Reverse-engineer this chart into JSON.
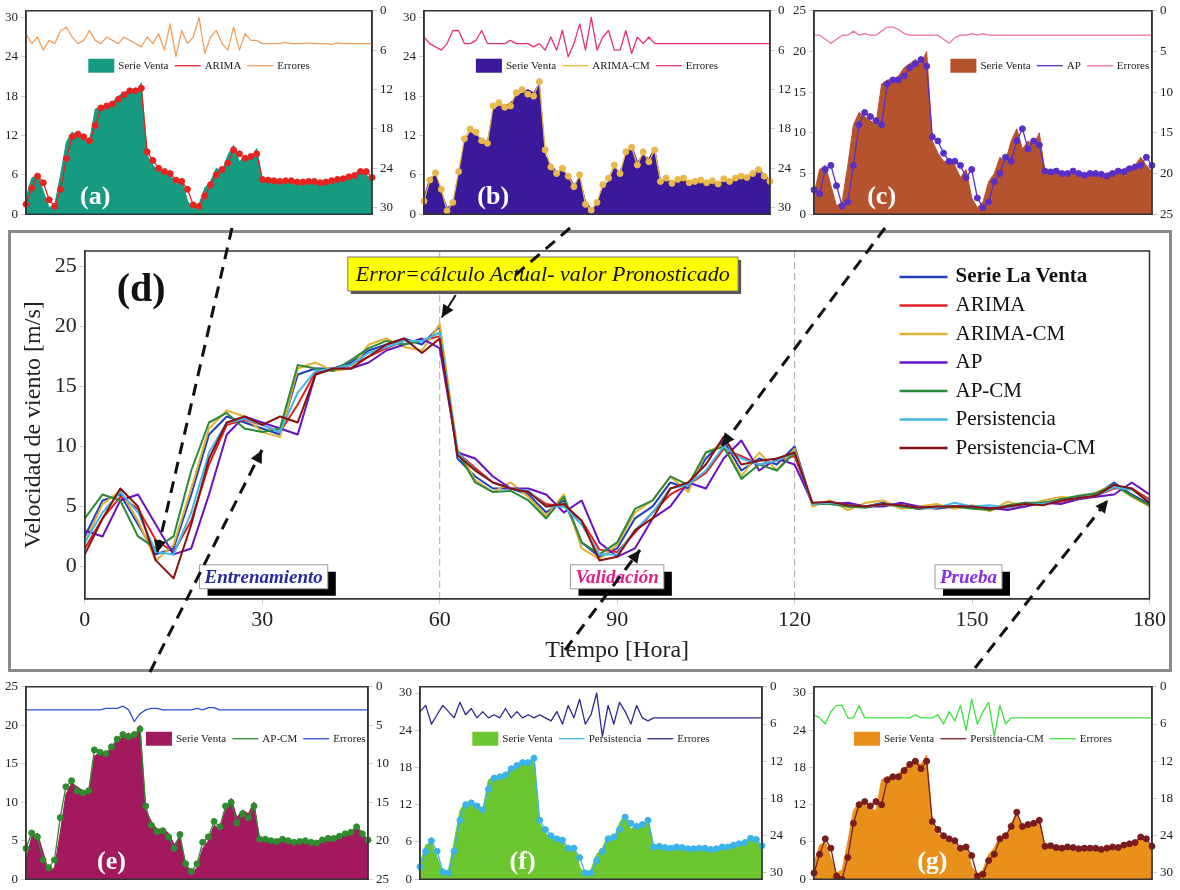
{
  "chart_data": [
    {
      "type": "area",
      "title": "(a)",
      "legend": "top",
      "categories": [
        null,
        null,
        null,
        null,
        null,
        null,
        null,
        null,
        null,
        null,
        null,
        null,
        null,
        null,
        null,
        null,
        null,
        null,
        null,
        null,
        null,
        null,
        null,
        null,
        null,
        null,
        null,
        null,
        null,
        null,
        null,
        null,
        null,
        null,
        null,
        null,
        null,
        null,
        null,
        null,
        null,
        null,
        null,
        null,
        null,
        null,
        null,
        null,
        null,
        null,
        null,
        null,
        null,
        null,
        null,
        null,
        null,
        null,
        null,
        null,
        null
      ],
      "ylim": [
        0,
        31
      ],
      "yticks": [
        0,
        6,
        12,
        18,
        24,
        30
      ],
      "y2lim": [
        31,
        0
      ],
      "y2ticks": [
        0,
        6,
        12,
        18,
        24,
        30
      ],
      "series": [
        {
          "name": "Serie Venta",
          "type": "area",
          "color": "#169a80",
          "values": [
            2.5,
            5.5,
            6,
            3.5,
            1,
            1.5,
            6,
            11,
            12.5,
            12,
            11.5,
            11,
            16,
            16.5,
            16.5,
            17,
            18,
            18.5,
            19,
            18.5,
            20,
            9,
            7.5,
            6.5,
            6.5,
            6,
            4.5,
            5.5,
            2,
            0.8,
            1.5,
            4,
            5,
            7,
            6.5,
            9,
            10.5,
            8,
            9,
            8.5,
            10,
            5.2,
            5.3,
            5,
            5,
            5.3,
            5,
            4.8,
            5,
            5,
            4.9,
            4.7,
            5,
            5.3,
            5.2,
            5.6,
            5.8,
            6,
            7,
            6,
            5.2
          ]
        },
        {
          "name": "ARIMA",
          "type": "line",
          "marker": "circle",
          "color": "#e8231f",
          "values": [
            1.5,
            4,
            5.8,
            4.8,
            2.2,
            1.2,
            3.8,
            8.5,
            11.8,
            12.2,
            11.8,
            11.2,
            13.5,
            16.2,
            16.5,
            16.8,
            17.5,
            18.2,
            18.8,
            18.8,
            19.2,
            9.5,
            8.2,
            7,
            6.5,
            6.2,
            5.2,
            5,
            3.8,
            1.4,
            1.2,
            2.8,
            4.5,
            6,
            6.8,
            7.8,
            9.8,
            9.2,
            8.5,
            8.8,
            9.2,
            5.3,
            5.2,
            5.1,
            5,
            5.1,
            5.1,
            4.9,
            4.9,
            5,
            5,
            4.8,
            4.9,
            5.1,
            5.3,
            5.4,
            5.7,
            5.9,
            6.5,
            6.5,
            5.6
          ]
        },
        {
          "name": "Errores",
          "type": "line",
          "axis": "y2",
          "color": "#f0a060",
          "values": [
            3.5,
            5,
            4,
            6,
            4.5,
            5,
            3,
            2.5,
            4,
            5,
            4.5,
            3,
            4.5,
            5,
            4,
            4.5,
            5,
            4,
            4.5,
            5,
            5.5,
            4,
            5,
            3.5,
            6,
            2,
            7,
            3,
            5,
            4,
            1,
            6.5,
            4,
            3,
            5,
            6,
            2.5,
            6,
            3.5,
            4.5,
            4.5,
            5,
            5,
            5,
            5,
            4.8,
            5,
            5,
            5,
            4.9,
            5,
            5,
            5,
            5.1,
            4.9,
            5,
            5,
            5,
            5,
            5,
            5
          ]
        }
      ]
    },
    {
      "type": "area",
      "title": "(b)",
      "legend": "top",
      "categories": [
        null,
        null,
        null,
        null,
        null,
        null,
        null,
        null,
        null,
        null,
        null,
        null,
        null,
        null,
        null,
        null,
        null,
        null,
        null,
        null,
        null,
        null,
        null,
        null,
        null,
        null,
        null,
        null,
        null,
        null,
        null,
        null,
        null,
        null,
        null,
        null,
        null,
        null,
        null,
        null,
        null,
        null,
        null,
        null,
        null,
        null,
        null,
        null,
        null,
        null,
        null,
        null,
        null,
        null,
        null,
        null,
        null,
        null,
        null,
        null,
        null
      ],
      "ylim": [
        0,
        31
      ],
      "yticks": [
        0,
        6,
        12,
        18,
        24,
        30
      ],
      "y2lim": [
        31,
        0
      ],
      "y2ticks": [
        0,
        6,
        12,
        18,
        24,
        30
      ],
      "series": [
        {
          "name": "Serie Venta",
          "type": "area",
          "color": "#3a1a9a",
          "values": [
            2.5,
            5.5,
            6,
            3.5,
            1,
            1.5,
            6,
            11,
            12.5,
            12,
            11.5,
            11,
            16,
            16.5,
            16.5,
            17,
            18,
            18.5,
            19,
            18.5,
            20,
            9,
            7.5,
            6.5,
            6.5,
            6,
            4.5,
            5.5,
            2,
            0.8,
            1.5,
            4,
            5,
            7,
            6.5,
            9,
            10.5,
            8,
            9,
            8.5,
            10,
            5.2,
            5.3,
            5,
            5,
            5.3,
            5,
            4.8,
            5,
            5,
            4.9,
            4.7,
            5,
            5.3,
            5.2,
            5.6,
            5.8,
            6,
            7,
            6,
            5.2
          ]
        },
        {
          "name": "ARIMA-CM",
          "type": "line",
          "marker": "circle",
          "color": "#e8b84a",
          "values": [
            2,
            5.2,
            6.3,
            3.8,
            0.5,
            1.8,
            6.5,
            11.5,
            13,
            12.5,
            11.2,
            10.8,
            16.5,
            17,
            16.3,
            16.5,
            18.5,
            19,
            18.3,
            18,
            20.2,
            9.8,
            7.2,
            6.2,
            7,
            5.8,
            4.2,
            6,
            1.5,
            0.6,
            1.8,
            4.5,
            5.5,
            7.5,
            6.2,
            9.5,
            10.2,
            7.5,
            9.5,
            8,
            9.8,
            5,
            5.5,
            4.7,
            5.3,
            5.5,
            4.8,
            5,
            5.2,
            4.8,
            5.1,
            4.6,
            5.4,
            5,
            5.5,
            5.8,
            5.6,
            6.2,
            6.8,
            5.8,
            5
          ]
        },
        {
          "name": "Errores",
          "type": "line",
          "axis": "y2",
          "color": "#e8307a",
          "values": [
            4,
            5,
            5.5,
            6,
            5,
            3,
            3,
            5,
            5,
            4.5,
            3,
            5,
            5,
            5,
            5,
            4.5,
            5,
            5,
            5,
            5.5,
            5,
            6,
            4,
            6,
            3,
            7,
            5,
            2,
            6,
            1,
            6,
            4,
            3,
            6,
            6,
            3,
            6.5,
            4,
            5,
            4,
            5,
            5,
            5,
            5,
            5,
            5,
            5,
            5,
            5,
            5,
            5,
            5,
            5,
            5,
            5,
            5,
            5,
            5,
            5,
            5,
            5
          ]
        }
      ]
    },
    {
      "type": "area",
      "title": "(c)",
      "legend": "top right",
      "categories": [
        null,
        null,
        null,
        null,
        null,
        null,
        null,
        null,
        null,
        null,
        null,
        null,
        null,
        null,
        null,
        null,
        null,
        null,
        null,
        null,
        null,
        null,
        null,
        null,
        null,
        null,
        null,
        null,
        null,
        null,
        null,
        null,
        null,
        null,
        null,
        null,
        null,
        null,
        null,
        null,
        null,
        null,
        null,
        null,
        null,
        null,
        null,
        null,
        null,
        null,
        null,
        null,
        null,
        null,
        null,
        null,
        null,
        null,
        null,
        null,
        null
      ],
      "ylim": [
        0,
        25
      ],
      "yticks": [
        0,
        5,
        10,
        15,
        20,
        25
      ],
      "y2lim": [
        25,
        0
      ],
      "y2ticks": [
        0,
        5,
        10,
        15,
        20,
        25
      ],
      "series": [
        {
          "name": "Serie Venta",
          "type": "area",
          "color": "#b5532e",
          "values": [
            2.5,
            5.5,
            6,
            3.5,
            1,
            1.5,
            6,
            11,
            12.5,
            12,
            11.5,
            11,
            16,
            16.5,
            16.5,
            17,
            18,
            18.5,
            19,
            18.5,
            20,
            9,
            7.5,
            6.5,
            6.5,
            6,
            4.5,
            5.5,
            2,
            0.8,
            1.5,
            4,
            5,
            7,
            6.5,
            9,
            10.5,
            8,
            9,
            8.5,
            10,
            5.2,
            5.3,
            5,
            5,
            5.3,
            5,
            4.8,
            5,
            5,
            4.9,
            4.7,
            5,
            5.3,
            5.2,
            5.6,
            5.8,
            6,
            7,
            6,
            5.2
          ]
        },
        {
          "name": "AP",
          "type": "line",
          "marker": "circle",
          "color": "#5a2fc8",
          "values": [
            3,
            2.5,
            5.5,
            6,
            3.5,
            1,
            1.5,
            6,
            11,
            12.5,
            12,
            11.5,
            11,
            16,
            16.5,
            16.5,
            17,
            18,
            18.5,
            19,
            18.2,
            9.5,
            9,
            7.5,
            6.5,
            6.5,
            6,
            4.5,
            5.5,
            2,
            0.8,
            1.5,
            4,
            5,
            7,
            6.5,
            9,
            10.5,
            8,
            9,
            8.5,
            5.3,
            5.2,
            5.3,
            5,
            5,
            5.3,
            5,
            4.8,
            5,
            5,
            4.9,
            4.7,
            5,
            5.3,
            5.2,
            5.6,
            5.8,
            6,
            7,
            6
          ]
        },
        {
          "name": "Errores",
          "type": "line",
          "axis": "y2",
          "color": "#f070a0",
          "values": [
            3,
            3,
            3.5,
            4,
            3.5,
            3,
            3,
            2.5,
            3,
            2.8,
            3,
            3,
            2.5,
            2,
            2,
            2.3,
            2.8,
            3,
            3,
            3,
            3,
            3,
            3,
            3.5,
            4,
            3.3,
            3,
            3,
            2.8,
            3,
            2.8,
            3,
            3,
            3,
            3,
            3,
            3,
            3,
            3,
            3,
            3,
            3,
            3,
            3,
            3,
            3,
            3,
            3,
            3,
            3,
            3,
            3,
            3,
            3,
            3,
            3,
            3,
            3,
            3,
            3,
            3
          ]
        }
      ]
    },
    {
      "type": "line",
      "title": "(d)",
      "legend": "top right",
      "xlabel": "Tiempo [Hora]",
      "ylabel": "Velocidad de viento [m/s]",
      "x": [
        0,
        3,
        6,
        9,
        12,
        15,
        18,
        21,
        24,
        27,
        30,
        33,
        36,
        39,
        42,
        45,
        48,
        51,
        54,
        57,
        60,
        63,
        66,
        69,
        72,
        75,
        78,
        81,
        84,
        87,
        90,
        93,
        96,
        99,
        102,
        105,
        108,
        111,
        114,
        117,
        120,
        123,
        126,
        129,
        132,
        135,
        138,
        141,
        144,
        147,
        150,
        153,
        156,
        159,
        162,
        165,
        168,
        171,
        174,
        177,
        180
      ],
      "xlim": [
        0,
        180
      ],
      "xticks": [
        0,
        30,
        60,
        90,
        120,
        150,
        180
      ],
      "ylim": [
        -2.7,
        26.3
      ],
      "yticks": [
        0,
        5,
        10,
        15,
        20,
        25
      ],
      "ref_lines": [
        {
          "axis": "x",
          "value": 60,
          "color": "#aaaaaa",
          "line_style": "dashed"
        },
        {
          "axis": "x",
          "value": 120,
          "color": "#aaaaaa",
          "line_style": "dashed"
        }
      ],
      "annotations": [
        {
          "text": "Error=cálculo Actual- valor Pronosticado",
          "x": 60,
          "y": 20.5
        },
        "Entrenamiento",
        "Validación",
        "Prueba"
      ],
      "series": [
        {
          "name": "Serie La Venta",
          "color": "#1f3fbf",
          "values": [
            2.5,
            5.5,
            6,
            3.5,
            1,
            1.5,
            6,
            11,
            12.5,
            12,
            11.5,
            11,
            16,
            16.5,
            16.5,
            17,
            18,
            18.5,
            19,
            18.5,
            20,
            9,
            7.5,
            6.5,
            6.5,
            6,
            4.5,
            5.5,
            2,
            0.8,
            1.5,
            4,
            5,
            7,
            6.5,
            9,
            10.5,
            8,
            9,
            8.5,
            10,
            5.2,
            5.3,
            5,
            5,
            5.3,
            5,
            4.8,
            5,
            5,
            4.9,
            4.7,
            5,
            5.3,
            5.2,
            5.6,
            5.8,
            6,
            7,
            6,
            5.2
          ]
        },
        {
          "name": "ARIMA",
          "color": "#e02020",
          "values": [
            1.5,
            4,
            5.8,
            4.8,
            2.2,
            1.2,
            3.8,
            8.5,
            11.8,
            12.2,
            11.8,
            11.2,
            13.5,
            16.2,
            16.5,
            16.8,
            17.5,
            18.2,
            18.8,
            18.8,
            19.2,
            9.5,
            8.2,
            7,
            6.5,
            6.2,
            5.2,
            5,
            3.8,
            1.4,
            1.2,
            2.8,
            4.5,
            6,
            6.8,
            7.8,
            9.8,
            9.2,
            8.5,
            8.8,
            9.2,
            5.3,
            5.2,
            5.1,
            5,
            5.1,
            5.1,
            4.9,
            4.9,
            5,
            5,
            4.8,
            4.9,
            5.1,
            5.3,
            5.4,
            5.7,
            5.9,
            6.5,
            6.5,
            5.6
          ]
        },
        {
          "name": "ARIMA-CM",
          "color": "#e0b030",
          "values": [
            2,
            5.2,
            6.3,
            3.8,
            0.5,
            1.8,
            6.5,
            11.5,
            13,
            12.5,
            11.2,
            10.8,
            16.5,
            17,
            16.3,
            16.5,
            18.5,
            19,
            18.3,
            18,
            20.2,
            9.8,
            7.2,
            6.2,
            7,
            5.8,
            4.2,
            6,
            1.5,
            0.6,
            1.8,
            4.5,
            5.5,
            7.5,
            6.2,
            9.5,
            10.2,
            7.5,
            9.5,
            8,
            9.8,
            5,
            5.5,
            4.7,
            5.3,
            5.5,
            4.8,
            5,
            5.2,
            4.8,
            5.1,
            4.6,
            5.4,
            5,
            5.5,
            5.8,
            5.6,
            6.2,
            6.8,
            5.8,
            5
          ]
        },
        {
          "name": "AP",
          "color": "#6a10c0",
          "values": [
            3,
            2.5,
            5.5,
            6,
            3.5,
            1,
            1.5,
            6,
            11,
            12.5,
            12,
            11.5,
            11,
            16,
            16.5,
            16.5,
            17,
            18,
            18.5,
            19,
            18.2,
            9.5,
            9,
            7.5,
            6.5,
            6.5,
            6,
            4.5,
            5.5,
            2,
            0.8,
            1.5,
            4,
            5,
            7,
            6.5,
            9,
            10.5,
            8,
            9,
            8.5,
            5.3,
            5.2,
            5.3,
            5,
            5,
            5.3,
            5,
            4.8,
            5,
            5,
            4.9,
            4.7,
            5,
            5.3,
            5.2,
            5.6,
            5.8,
            6,
            7,
            6
          ]
        },
        {
          "name": "AP-CM",
          "color": "#2a8a3a",
          "values": [
            4,
            6,
            5.5,
            2.5,
            1.5,
            2.5,
            8,
            12,
            12.8,
            11.5,
            11.2,
            11.5,
            16.8,
            16.5,
            16.3,
            17.2,
            18.2,
            18.8,
            18.5,
            18.8,
            19.5,
            9.5,
            7,
            6.2,
            6.3,
            5.5,
            4,
            5.8,
            2,
            1,
            2,
            4.8,
            5.5,
            7.5,
            6.8,
            9.5,
            10,
            7.3,
            8.5,
            8,
            9.5,
            5.2,
            5.2,
            5,
            4.9,
            5.2,
            5,
            4.8,
            4.9,
            5,
            4.8,
            4.7,
            5.1,
            5.3,
            5.3,
            5.6,
            5.9,
            6.1,
            6.8,
            5.9,
            5.1
          ]
        },
        {
          "name": "Persistencia",
          "color": "#40b8e8",
          "values": [
            2,
            4.5,
            6.2,
            4.5,
            1.2,
            1,
            4.5,
            9.5,
            12,
            12.3,
            11.8,
            11.2,
            14.5,
            16.3,
            16.5,
            16.8,
            17.8,
            18.3,
            18.8,
            18.8,
            19.5,
            9.5,
            8,
            7,
            6.5,
            6.3,
            5,
            5,
            3.5,
            1,
            1,
            3,
            4.5,
            6.5,
            6.8,
            8,
            10,
            9,
            8.5,
            8.8,
            9.5,
            5.2,
            5.3,
            5.1,
            5,
            5.2,
            5.1,
            4.9,
            4.9,
            5.3,
            5,
            5.1,
            4.9,
            5.2,
            5.2,
            5.5,
            5.7,
            5.9,
            6.6,
            6.4,
            5.4
          ]
        },
        {
          "name": "Persistencia-CM",
          "color": "#8a1010",
          "values": [
            1,
            4,
            6.5,
            5,
            0.5,
            -1,
            3.5,
            9,
            12,
            12.5,
            11.8,
            12.5,
            12,
            16,
            16.5,
            16.5,
            17.5,
            18.5,
            19,
            17.8,
            19,
            9.3,
            8,
            7,
            6.5,
            6.2,
            5,
            5.2,
            3.8,
            0.5,
            0.8,
            3,
            4,
            6.5,
            7,
            8.5,
            10.8,
            8.5,
            8.8,
            9,
            9.5,
            5.3,
            5.4,
            5.1,
            5,
            5.2,
            5.1,
            4.9,
            5,
            5,
            5,
            4.8,
            5,
            5.2,
            5.1,
            5.5,
            5.7,
            5.9,
            6.8,
            6.5,
            5.3
          ]
        }
      ]
    },
    {
      "type": "area",
      "title": "(e)",
      "legend": "top right",
      "categories": [
        null,
        null,
        null,
        null,
        null,
        null,
        null,
        null,
        null,
        null,
        null,
        null,
        null,
        null,
        null,
        null,
        null,
        null,
        null,
        null,
        null,
        null,
        null,
        null,
        null,
        null,
        null,
        null,
        null,
        null,
        null,
        null,
        null,
        null,
        null,
        null,
        null,
        null,
        null,
        null,
        null,
        null,
        null,
        null,
        null,
        null,
        null,
        null,
        null,
        null,
        null,
        null,
        null,
        null,
        null,
        null,
        null,
        null,
        null,
        null,
        null
      ],
      "ylim": [
        0,
        25
      ],
      "yticks": [
        0,
        5,
        10,
        15,
        20,
        25
      ],
      "y2lim": [
        25,
        0
      ],
      "y2ticks": [
        0,
        5,
        10,
        15,
        20,
        25
      ],
      "series": [
        {
          "name": "Serie Venta",
          "type": "area",
          "color": "#a3195e",
          "values": [
            2.5,
            5.5,
            6,
            3.5,
            1,
            1.5,
            6,
            11,
            12.5,
            12,
            11.5,
            11,
            16,
            16.5,
            16.5,
            17,
            18,
            18.5,
            19,
            18.5,
            20,
            9,
            7.5,
            6.5,
            6.5,
            6,
            4.5,
            5.5,
            2,
            0.8,
            1.5,
            4,
            5,
            7,
            6.5,
            9,
            10.5,
            8,
            9,
            8.5,
            10,
            5.2,
            5.3,
            5,
            5,
            5.3,
            5,
            4.8,
            5,
            5,
            4.9,
            4.7,
            5,
            5.3,
            5.2,
            5.6,
            5.8,
            6,
            7,
            6,
            5.2
          ]
        },
        {
          "name": "AP-CM",
          "type": "line",
          "marker": "circle",
          "color": "#2e8b2e",
          "values": [
            4,
            6,
            5.5,
            2.5,
            1.5,
            2.5,
            8,
            12,
            12.8,
            11.5,
            11.2,
            11.5,
            16.8,
            16.5,
            16.3,
            17.2,
            18.2,
            18.8,
            18.5,
            18.8,
            19.5,
            9.5,
            7,
            6.2,
            6.3,
            5.5,
            4,
            5.8,
            2,
            1,
            2,
            4.8,
            5.5,
            7.5,
            6.8,
            9.5,
            10,
            7.3,
            8.5,
            8,
            9.5,
            5.2,
            5.2,
            5,
            4.9,
            5.2,
            5,
            4.8,
            4.9,
            5,
            4.8,
            4.7,
            5.1,
            5.3,
            5.3,
            5.6,
            5.9,
            6.1,
            6.8,
            5.9,
            5.1
          ]
        },
        {
          "name": "Errores",
          "type": "line",
          "axis": "y2",
          "color": "#3050d0",
          "values": [
            3,
            3,
            3,
            3,
            3,
            3,
            3,
            3,
            3,
            3,
            3,
            3,
            3,
            3,
            2.8,
            2.8,
            2.8,
            2.5,
            3,
            4.5,
            3.5,
            3,
            2.8,
            2.8,
            3,
            3,
            3,
            3,
            3,
            3,
            2.8,
            3,
            2.7,
            2.7,
            3,
            3,
            3,
            3,
            3,
            3,
            3,
            3,
            3,
            3,
            3,
            3,
            3,
            3,
            3,
            3,
            3,
            3,
            3,
            3,
            3,
            3,
            3,
            3,
            3,
            3,
            3
          ]
        }
      ]
    },
    {
      "type": "area",
      "title": "(f)",
      "legend": "top",
      "categories": [
        null,
        null,
        null,
        null,
        null,
        null,
        null,
        null,
        null,
        null,
        null,
        null,
        null,
        null,
        null,
        null,
        null,
        null,
        null,
        null,
        null,
        null,
        null,
        null,
        null,
        null,
        null,
        null,
        null,
        null,
        null,
        null,
        null,
        null,
        null,
        null,
        null,
        null,
        null,
        null,
        null,
        null,
        null,
        null,
        null,
        null,
        null,
        null,
        null,
        null,
        null,
        null,
        null,
        null,
        null,
        null,
        null,
        null,
        null,
        null,
        null
      ],
      "ylim": [
        0,
        31
      ],
      "yticks": [
        0,
        6,
        12,
        18,
        24,
        30
      ],
      "y2lim": [
        31,
        0
      ],
      "y2ticks": [
        0,
        6,
        12,
        18,
        24,
        30
      ],
      "series": [
        {
          "name": "Serie Venta",
          "type": "area",
          "color": "#6cc630",
          "values": [
            2.5,
            5.5,
            6,
            3.5,
            1,
            1.5,
            6,
            11,
            12.5,
            12,
            11.5,
            11,
            16,
            16.5,
            16.5,
            17,
            18,
            18.5,
            19,
            18.5,
            20,
            9,
            7.5,
            6.5,
            6.5,
            6,
            4.5,
            5.5,
            2,
            0.8,
            1.5,
            4,
            5,
            7,
            6.5,
            9,
            10.5,
            8,
            9,
            8.5,
            10,
            5.2,
            5.3,
            5,
            5,
            5.3,
            5,
            4.8,
            5,
            5,
            4.9,
            4.7,
            5,
            5.3,
            5.2,
            5.6,
            5.8,
            6,
            7,
            6,
            5.2
          ]
        },
        {
          "name": "Persistencia",
          "type": "line",
          "marker": "circle",
          "color": "#3ab4e8",
          "values": [
            2,
            4.5,
            6.2,
            4.5,
            1.2,
            1,
            4.5,
            9.5,
            12,
            12.3,
            11.8,
            11.2,
            14.5,
            16.3,
            16.5,
            16.8,
            17.8,
            18.3,
            18.8,
            18.8,
            19.5,
            9.5,
            8,
            7,
            6.5,
            6.3,
            5,
            5,
            3.5,
            1,
            1,
            3,
            4.5,
            6.5,
            6.8,
            8,
            10,
            9,
            8.5,
            8.8,
            9.5,
            5.2,
            5.3,
            5.1,
            5,
            5.2,
            5.1,
            4.9,
            4.9,
            5,
            5,
            4.8,
            4.9,
            5.2,
            5.2,
            5.5,
            5.7,
            5.9,
            6.6,
            6.4,
            5.4
          ]
        },
        {
          "name": "Errores",
          "type": "line",
          "axis": "y2",
          "color": "#2a2a90",
          "values": [
            4,
            3,
            6,
            4.5,
            3,
            4,
            5,
            2.5,
            4.5,
            3.5,
            5,
            4,
            5,
            4.5,
            5,
            3.5,
            5,
            4,
            5,
            4.5,
            5,
            4.5,
            5,
            5.5,
            4,
            6,
            3,
            5,
            2,
            6,
            4.5,
            1,
            8,
            3,
            6,
            2.5,
            4,
            6,
            3,
            5,
            5.5,
            5,
            5,
            5,
            5,
            5,
            5,
            5,
            5,
            5,
            5,
            5,
            5,
            5,
            5,
            5,
            5,
            5,
            5,
            5,
            5
          ]
        }
      ]
    },
    {
      "type": "area",
      "title": "(g)",
      "legend": "top",
      "categories": [
        null,
        null,
        null,
        null,
        null,
        null,
        null,
        null,
        null,
        null,
        null,
        null,
        null,
        null,
        null,
        null,
        null,
        null,
        null,
        null,
        null,
        null,
        null,
        null,
        null,
        null,
        null,
        null,
        null,
        null,
        null,
        null,
        null,
        null,
        null,
        null,
        null,
        null,
        null,
        null,
        null,
        null,
        null,
        null,
        null,
        null,
        null,
        null,
        null,
        null,
        null,
        null,
        null,
        null,
        null,
        null,
        null,
        null,
        null,
        null,
        null
      ],
      "ylim": [
        0,
        31
      ],
      "yticks": [
        0,
        6,
        12,
        18,
        24,
        30
      ],
      "y2lim": [
        31,
        0
      ],
      "y2ticks": [
        0,
        6,
        12,
        18,
        24,
        30
      ],
      "series": [
        {
          "name": "Serie Venta",
          "type": "area",
          "color": "#e8901a",
          "values": [
            2.5,
            5.5,
            6,
            3.5,
            1,
            1.5,
            6,
            11,
            12.5,
            12,
            11.5,
            11,
            16,
            16.5,
            16.5,
            17,
            18,
            18.5,
            19,
            18.5,
            20,
            9,
            7.5,
            6.5,
            6.5,
            6,
            4.5,
            5.5,
            2,
            0.8,
            1.5,
            4,
            5,
            7,
            6.5,
            9,
            10.5,
            8,
            9,
            8.5,
            10,
            5.2,
            5.3,
            5,
            5,
            5.3,
            5,
            4.8,
            5,
            5,
            4.9,
            4.7,
            5,
            5.3,
            5.2,
            5.6,
            5.8,
            6,
            7,
            6,
            5.2
          ]
        },
        {
          "name": "Persistencia-CM",
          "type": "line",
          "marker": "circle",
          "color": "#7a1c1c",
          "values": [
            1,
            4,
            6.5,
            5,
            0.5,
            0,
            3.5,
            9,
            12,
            12.5,
            11.8,
            12.5,
            12,
            16,
            16.5,
            16.5,
            17.5,
            18.5,
            19,
            17.8,
            19,
            9.3,
            8,
            7,
            6.5,
            6.2,
            5,
            5.2,
            3.8,
            0.5,
            0.8,
            3,
            4,
            6.5,
            7,
            8.5,
            10.8,
            8.5,
            8.8,
            9,
            9.5,
            5.3,
            5.4,
            5.1,
            5,
            5.2,
            5.1,
            4.9,
            5,
            5,
            5,
            4.8,
            5,
            5.2,
            5.1,
            5.5,
            5.7,
            5.9,
            6.8,
            6.5,
            5.3
          ]
        },
        {
          "name": "Errores",
          "type": "line",
          "axis": "y2",
          "color": "#40e040",
          "values": [
            4.5,
            5,
            6,
            4,
            3,
            3,
            5,
            5,
            3,
            5,
            5,
            5,
            5,
            5,
            5,
            5,
            5,
            5,
            4.5,
            5,
            5,
            5,
            4.5,
            6,
            4,
            5.5,
            3,
            7,
            2,
            6,
            4,
            2.5,
            8,
            3,
            6,
            5,
            5,
            5,
            5,
            5,
            5,
            5,
            5,
            5,
            5,
            5,
            5,
            5,
            5,
            5,
            5,
            5,
            5,
            5,
            5,
            5,
            5,
            5,
            5,
            5,
            5
          ]
        }
      ]
    }
  ]
}
